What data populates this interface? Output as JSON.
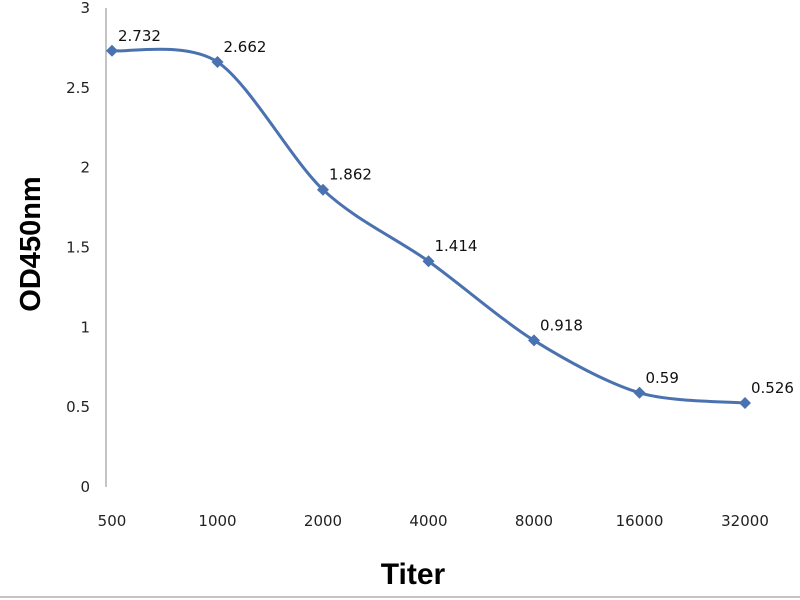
{
  "chart_data": {
    "type": "line",
    "title": "",
    "xlabel": "Titer",
    "ylabel": "OD450nm",
    "categories": [
      "500",
      "1000",
      "2000",
      "4000",
      "8000",
      "16000",
      "32000"
    ],
    "series": [
      {
        "values": [
          2.732,
          2.662,
          1.862,
          1.414,
          0.918,
          0.59,
          0.526
        ],
        "data_labels": [
          "2.732",
          "2.662",
          "1.862",
          "1.414",
          "0.918",
          "0.59",
          "0.526"
        ],
        "color": "#4a72b0",
        "marker": "diamond",
        "smooth": true
      }
    ],
    "y_ticks": [
      "0",
      "0.5",
      "1",
      "1.5",
      "2",
      "2.5",
      "3"
    ],
    "ylim": [
      0,
      3
    ],
    "grid": false,
    "legend": "none"
  }
}
